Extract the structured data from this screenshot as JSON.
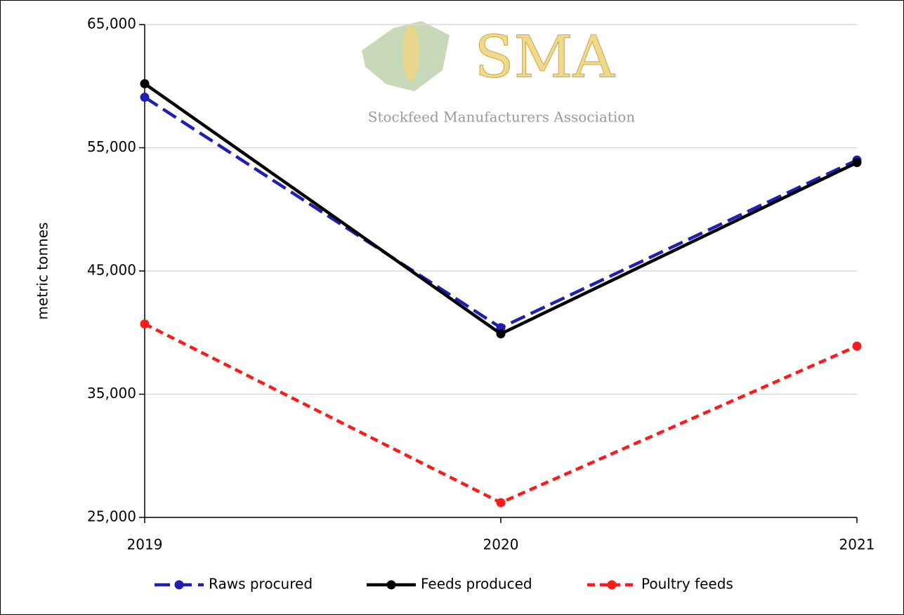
{
  "chart_data": {
    "type": "line",
    "y_label": "metric tonnes",
    "annotations": [
      "SMA",
      "Stockfeed Manufacturers Association"
    ],
    "categories": [
      "2019",
      "2020",
      "2021"
    ],
    "series": [
      {
        "name": "Raws procured",
        "color": "#1f1fb4",
        "dash": "long",
        "values": [
          59100,
          40400,
          54000
        ]
      },
      {
        "name": "Feeds produced",
        "color": "#000000",
        "dash": "solid",
        "values": [
          60200,
          39900,
          53800
        ]
      },
      {
        "name": "Poultry feeds",
        "color": "#ff1a1a",
        "dash": "short",
        "values": [
          40700,
          26200,
          38900
        ]
      }
    ],
    "ylim": [
      25000,
      65000
    ],
    "yticks": [
      {
        "value": 25000,
        "label": "25,000"
      },
      {
        "value": 35000,
        "label": "35,000"
      },
      {
        "value": 45000,
        "label": "45,000"
      },
      {
        "value": 55000,
        "label": "55,000"
      },
      {
        "value": 65000,
        "label": "65,000"
      }
    ],
    "grid": true,
    "legend": "bottom"
  }
}
